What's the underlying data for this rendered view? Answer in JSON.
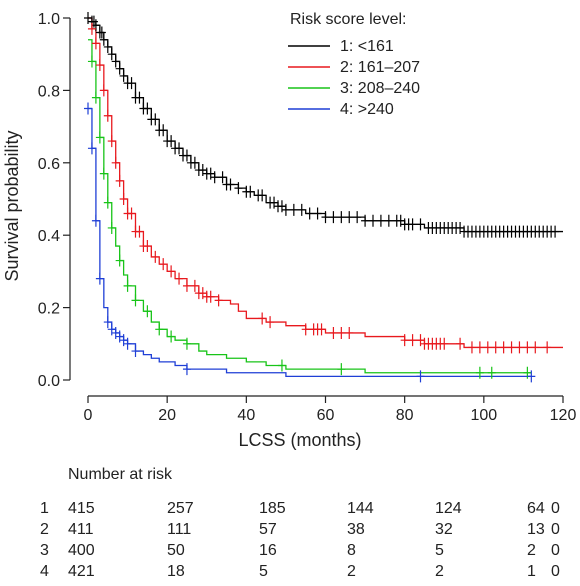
{
  "chart_data": {
    "type": "line",
    "title": "",
    "xlabel": "LCSS (months)",
    "ylabel": "Survival probability",
    "xlim": [
      0,
      120
    ],
    "ylim": [
      0,
      1.0
    ],
    "xticks": [
      0,
      20,
      40,
      60,
      80,
      100,
      120
    ],
    "yticks": [
      0.0,
      0.2,
      0.4,
      0.6,
      0.8,
      1.0
    ],
    "grid": false,
    "legend": {
      "title": "Risk score level:",
      "placement": "top-right"
    },
    "series": [
      {
        "name": "1: <161",
        "color": "#000000",
        "x": [
          0,
          1,
          2,
          3,
          4,
          5,
          6,
          7,
          8,
          9,
          10,
          12,
          14,
          16,
          18,
          20,
          22,
          24,
          26,
          28,
          30,
          32,
          35,
          38,
          40,
          42,
          45,
          48,
          50,
          55,
          60,
          65,
          70,
          75,
          80,
          85,
          90,
          95,
          100,
          110,
          120
        ],
        "y": [
          1.0,
          0.99,
          0.98,
          0.96,
          0.94,
          0.92,
          0.9,
          0.88,
          0.86,
          0.84,
          0.82,
          0.78,
          0.75,
          0.72,
          0.69,
          0.66,
          0.64,
          0.62,
          0.6,
          0.58,
          0.57,
          0.56,
          0.54,
          0.53,
          0.52,
          0.51,
          0.49,
          0.48,
          0.47,
          0.46,
          0.45,
          0.45,
          0.44,
          0.44,
          0.43,
          0.42,
          0.42,
          0.41,
          0.41,
          0.41,
          0.41
        ],
        "censor_x": [
          0,
          1,
          1.5,
          2,
          3,
          3.5,
          4,
          5,
          6,
          7,
          8,
          9,
          10,
          11,
          12,
          13,
          14,
          15,
          16,
          17,
          18,
          19,
          20,
          21,
          22,
          23,
          24,
          25,
          26,
          27,
          28,
          29,
          30,
          31,
          32,
          34,
          35,
          36,
          38,
          40,
          41,
          43,
          44,
          46,
          47,
          48,
          49,
          50,
          52,
          54,
          56,
          58,
          60,
          62,
          64,
          66,
          68,
          70,
          72,
          74,
          76,
          78,
          79,
          80,
          81,
          82,
          84,
          86,
          87,
          88,
          89,
          90,
          91,
          92,
          93,
          94,
          95,
          96,
          97,
          98,
          99,
          100,
          101,
          102,
          103,
          104,
          105,
          106,
          107,
          108,
          109,
          110,
          111,
          112,
          113,
          114,
          115,
          116,
          117,
          118
        ]
      },
      {
        "name": "2: 161–207",
        "color": "#e8191e",
        "x": [
          0,
          1,
          2,
          3,
          4,
          5,
          6,
          7,
          8,
          9,
          10,
          12,
          14,
          16,
          18,
          20,
          22,
          25,
          28,
          30,
          33,
          36,
          38,
          40,
          45,
          50,
          55,
          60,
          65,
          70,
          75,
          80,
          85,
          90,
          95,
          100,
          110,
          120
        ],
        "y": [
          1.0,
          0.97,
          0.93,
          0.87,
          0.8,
          0.73,
          0.66,
          0.6,
          0.55,
          0.5,
          0.46,
          0.41,
          0.37,
          0.34,
          0.32,
          0.3,
          0.28,
          0.26,
          0.24,
          0.23,
          0.22,
          0.21,
          0.19,
          0.17,
          0.16,
          0.15,
          0.14,
          0.13,
          0.13,
          0.12,
          0.12,
          0.11,
          0.1,
          0.1,
          0.09,
          0.09,
          0.09,
          0.09
        ],
        "censor_x": [
          1,
          2,
          3,
          4,
          5,
          6,
          7,
          8,
          9,
          10,
          11,
          12,
          13,
          14,
          15,
          17,
          19,
          21,
          23,
          25,
          27,
          28,
          29,
          30,
          31,
          33,
          44,
          46,
          55,
          57,
          58,
          59,
          62,
          64,
          66,
          80,
          82,
          84,
          85,
          86,
          87,
          88,
          89,
          90,
          94,
          97,
          99,
          101,
          103,
          105,
          107,
          109,
          111,
          113,
          116
        ]
      },
      {
        "name": "3: 208–240",
        "color": "#18c418",
        "x": [
          0,
          1,
          2,
          3,
          4,
          5,
          6,
          7,
          8,
          9,
          10,
          12,
          14,
          16,
          18,
          20,
          22,
          25,
          28,
          30,
          35,
          40,
          45,
          50,
          55,
          60,
          70,
          80,
          90,
          100,
          112
        ],
        "y": [
          0.94,
          0.88,
          0.78,
          0.67,
          0.57,
          0.49,
          0.42,
          0.37,
          0.33,
          0.29,
          0.26,
          0.22,
          0.19,
          0.16,
          0.14,
          0.12,
          0.11,
          0.1,
          0.08,
          0.07,
          0.06,
          0.05,
          0.04,
          0.03,
          0.03,
          0.03,
          0.02,
          0.02,
          0.02,
          0.02,
          0.02
        ],
        "censor_x": [
          1,
          2,
          3,
          4,
          5,
          6,
          8,
          10,
          12,
          15,
          18,
          21,
          25,
          49,
          64,
          99,
          102,
          111
        ]
      },
      {
        "name": "4: >240",
        "color": "#1f3fd6",
        "x": [
          0,
          1,
          2,
          3,
          4,
          5,
          6,
          7,
          8,
          9,
          10,
          12,
          14,
          16,
          18,
          20,
          22,
          25,
          30,
          35,
          40,
          45,
          50,
          60,
          80,
          112
        ],
        "y": [
          0.75,
          0.64,
          0.44,
          0.28,
          0.2,
          0.16,
          0.14,
          0.13,
          0.12,
          0.11,
          0.1,
          0.08,
          0.07,
          0.06,
          0.05,
          0.05,
          0.04,
          0.03,
          0.03,
          0.02,
          0.02,
          0.02,
          0.01,
          0.01,
          0.01,
          0.01
        ],
        "censor_x": [
          0,
          1,
          2,
          3,
          5,
          6,
          7,
          8,
          9,
          10,
          12,
          25,
          84,
          112
        ]
      }
    ],
    "risk_table": {
      "title": "Number at risk",
      "time_points": [
        0,
        20,
        40,
        60,
        80,
        100,
        120
      ],
      "rows": [
        {
          "label": "1",
          "values": [
            "415",
            "257",
            "185",
            "144",
            "124",
            "64",
            "0"
          ]
        },
        {
          "label": "2",
          "values": [
            "411",
            "111",
            "57",
            "38",
            "32",
            "13",
            "0"
          ]
        },
        {
          "label": "3",
          "values": [
            "400",
            "50",
            "16",
            "8",
            "5",
            "2",
            "0"
          ]
        },
        {
          "label": "4",
          "values": [
            "421",
            "18",
            "5",
            "2",
            "2",
            "1",
            "0"
          ]
        }
      ]
    }
  }
}
